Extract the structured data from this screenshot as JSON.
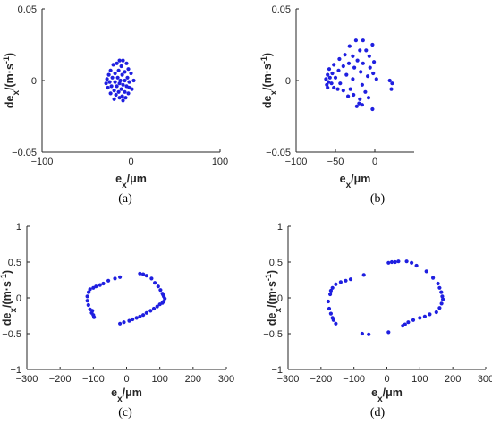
{
  "marker_color": "#1f1fe0",
  "axis_color": "#262626",
  "chart_data": [
    {
      "type": "scatter",
      "caption": "(a)",
      "xlabel": "e_x/μm",
      "ylabel": "de_x/(m·s^-1)",
      "xlim": [
        -100,
        100
      ],
      "ylim": [
        -0.05,
        0.05
      ],
      "xticks": [
        -100,
        0,
        100
      ],
      "yticks": [
        -0.05,
        0,
        0.05
      ],
      "ytick_labels": [
        "−0.05",
        "0",
        "0.05"
      ],
      "xtick_labels": [
        "−100",
        "0",
        "100"
      ],
      "grid": false,
      "points": [
        [
          -13,
          0.014
        ],
        [
          -9,
          0.014
        ],
        [
          -16,
          0.012
        ],
        [
          -5,
          0.012
        ],
        [
          -20,
          0.011
        ],
        [
          -11,
          0.01
        ],
        [
          -3,
          0.008
        ],
        [
          -23,
          0.007
        ],
        [
          -14,
          0.007
        ],
        [
          -7,
          0.006
        ],
        [
          -18,
          0.005
        ],
        [
          0,
          0.005
        ],
        [
          -25,
          0.004
        ],
        [
          -10,
          0.004
        ],
        [
          -21,
          0.002
        ],
        [
          -15,
          0.002
        ],
        [
          -4,
          0.002
        ],
        [
          -27,
          0.001
        ],
        [
          -12,
          0.0
        ],
        [
          -7,
          0.0
        ],
        [
          3,
          0.0
        ],
        [
          -24,
          -0.001
        ],
        [
          -18,
          -0.001
        ],
        [
          -2,
          -0.001
        ],
        [
          -13,
          -0.002
        ],
        [
          -28,
          -0.002
        ],
        [
          -9,
          -0.003
        ],
        [
          -22,
          -0.004
        ],
        [
          -16,
          -0.004
        ],
        [
          -5,
          -0.004
        ],
        [
          -26,
          -0.005
        ],
        [
          -11,
          -0.006
        ],
        [
          1,
          -0.006
        ],
        [
          -19,
          -0.007
        ],
        [
          -14,
          -0.008
        ],
        [
          -7,
          -0.008
        ],
        [
          -23,
          -0.009
        ],
        [
          -3,
          -0.009
        ],
        [
          -17,
          -0.01
        ],
        [
          -10,
          -0.011
        ],
        [
          -13,
          -0.012
        ],
        [
          -6,
          -0.012
        ],
        [
          -19,
          -0.013
        ],
        [
          -9,
          -0.014
        ],
        [
          -2,
          -0.005
        ]
      ]
    },
    {
      "type": "scatter",
      "caption": "(b)",
      "xlabel": "e_x/μm",
      "ylabel": "de_x/(m·s^-1)",
      "xlim": [
        -100,
        50
      ],
      "ylim": [
        -0.05,
        0.05
      ],
      "xticks": [
        -100,
        -50,
        0
      ],
      "yticks": [
        -0.05,
        0,
        0.05
      ],
      "ytick_labels": [
        "−0.05",
        "0",
        "0.05"
      ],
      "xtick_labels": [
        "−100",
        "−50",
        "0"
      ],
      "grid": false,
      "points": [
        [
          -24,
          0.028
        ],
        [
          -15,
          0.028
        ],
        [
          -32,
          0.024
        ],
        [
          -3,
          0.025
        ],
        [
          -19,
          0.021
        ],
        [
          -11,
          0.021
        ],
        [
          -38,
          0.018
        ],
        [
          -28,
          0.017
        ],
        [
          -7,
          0.017
        ],
        [
          -45,
          0.015
        ],
        [
          -22,
          0.014
        ],
        [
          -1,
          0.013
        ],
        [
          -33,
          0.012
        ],
        [
          -15,
          0.012
        ],
        [
          -52,
          0.011
        ],
        [
          -40,
          0.01
        ],
        [
          -26,
          0.009
        ],
        [
          -6,
          0.009
        ],
        [
          -58,
          0.008
        ],
        [
          -46,
          0.007
        ],
        [
          -18,
          0.006
        ],
        [
          -2,
          0.005
        ],
        [
          -54,
          0.005
        ],
        [
          -60,
          0.004
        ],
        [
          -36,
          0.004
        ],
        [
          -9,
          0.003
        ],
        [
          -57,
          0.002
        ],
        [
          -50,
          0.002
        ],
        [
          -62,
          0.001
        ],
        [
          -28,
          0.001
        ],
        [
          2,
          0.001
        ],
        [
          -59,
          -0.001
        ],
        [
          -55,
          -0.002
        ],
        [
          -44,
          -0.002
        ],
        [
          -61,
          -0.003
        ],
        [
          -16,
          -0.003
        ],
        [
          -52,
          -0.005
        ],
        [
          -60,
          -0.005
        ],
        [
          -47,
          -0.006
        ],
        [
          -40,
          -0.007
        ],
        [
          -31,
          -0.006
        ],
        [
          21,
          -0.006
        ],
        [
          -12,
          -0.008
        ],
        [
          -27,
          -0.01
        ],
        [
          -34,
          -0.011
        ],
        [
          -19,
          -0.013
        ],
        [
          -8,
          -0.012
        ],
        [
          -23,
          -0.018
        ],
        [
          -16,
          -0.017
        ],
        [
          -3,
          -0.02
        ],
        [
          -20,
          -0.016
        ],
        [
          19,
          0.0
        ],
        [
          22,
          -0.002
        ]
      ]
    },
    {
      "type": "scatter",
      "caption": "(c)",
      "xlabel": "e_x/μm",
      "ylabel": "de_x/(m·s^-1)",
      "xlim": [
        -300,
        300
      ],
      "ylim": [
        -1,
        1
      ],
      "xticks": [
        -300,
        -200,
        -100,
        0,
        100,
        200,
        300
      ],
      "yticks": [
        -1,
        -0.5,
        0,
        0.5,
        1
      ],
      "ytick_labels": [
        "−1",
        "−0.5",
        "0",
        "0.5",
        "1"
      ],
      "xtick_labels": [
        "−300",
        "−200",
        "−100",
        "0",
        "100",
        "200",
        "300"
      ],
      "grid": false,
      "points": [
        [
          -110,
          0.12
        ],
        [
          -100,
          0.14
        ],
        [
          -92,
          0.16
        ],
        [
          -80,
          0.18
        ],
        [
          -70,
          0.2
        ],
        [
          -55,
          0.24
        ],
        [
          -35,
          0.27
        ],
        [
          -20,
          0.29
        ],
        [
          40,
          0.34
        ],
        [
          50,
          0.33
        ],
        [
          60,
          0.31
        ],
        [
          75,
          0.27
        ],
        [
          85,
          0.21
        ],
        [
          95,
          0.16
        ],
        [
          102,
          0.11
        ],
        [
          108,
          0.06
        ],
        [
          112,
          0.02
        ],
        [
          110,
          0.04
        ],
        [
          115,
          -0.01
        ],
        [
          112,
          -0.05
        ],
        [
          108,
          -0.07
        ],
        [
          100,
          -0.09
        ],
        [
          92,
          -0.12
        ],
        [
          82,
          -0.15
        ],
        [
          72,
          -0.18
        ],
        [
          60,
          -0.21
        ],
        [
          50,
          -0.24
        ],
        [
          40,
          -0.26
        ],
        [
          30,
          -0.28
        ],
        [
          18,
          -0.3
        ],
        [
          8,
          -0.32
        ],
        [
          -8,
          -0.34
        ],
        [
          -20,
          -0.36
        ],
        [
          -98,
          -0.27
        ],
        [
          -105,
          -0.21
        ],
        [
          -110,
          -0.16
        ],
        [
          -115,
          -0.1
        ],
        [
          -118,
          -0.04
        ],
        [
          -118,
          0.02
        ],
        [
          -114,
          0.08
        ],
        [
          -100,
          -0.24
        ],
        [
          -103,
          -0.18
        ]
      ]
    },
    {
      "type": "scatter",
      "caption": "(d)",
      "xlabel": "e_x/μm",
      "ylabel": "de_x/(m·s^-1)",
      "xlim": [
        -300,
        300
      ],
      "ylim": [
        -1,
        1
      ],
      "xticks": [
        -300,
        -200,
        -100,
        0,
        100,
        200,
        300
      ],
      "yticks": [
        -1,
        -0.5,
        0,
        0.5,
        1
      ],
      "ytick_labels": [
        "−1",
        "−0.5",
        "0",
        "0.5",
        "1"
      ],
      "xtick_labels": [
        "−300",
        "−200",
        "−100",
        "0",
        "100",
        "200",
        "300"
      ],
      "grid": false,
      "points": [
        [
          -170,
          0.1
        ],
        [
          -165,
          0.14
        ],
        [
          -155,
          0.19
        ],
        [
          -140,
          0.22
        ],
        [
          -125,
          0.24
        ],
        [
          -110,
          0.26
        ],
        [
          -70,
          0.32
        ],
        [
          5,
          0.49
        ],
        [
          15,
          0.5
        ],
        [
          25,
          0.5
        ],
        [
          35,
          0.51
        ],
        [
          60,
          0.51
        ],
        [
          75,
          0.49
        ],
        [
          90,
          0.45
        ],
        [
          120,
          0.37
        ],
        [
          140,
          0.28
        ],
        [
          155,
          0.2
        ],
        [
          160,
          0.14
        ],
        [
          165,
          0.08
        ],
        [
          168,
          0.02
        ],
        [
          170,
          -0.02
        ],
        [
          166,
          -0.08
        ],
        [
          160,
          -0.14
        ],
        [
          150,
          -0.2
        ],
        [
          130,
          -0.23
        ],
        [
          115,
          -0.26
        ],
        [
          100,
          -0.28
        ],
        [
          80,
          -0.31
        ],
        [
          65,
          -0.34
        ],
        [
          55,
          -0.37
        ],
        [
          48,
          -0.39
        ],
        [
          5,
          -0.48
        ],
        [
          -55,
          -0.51
        ],
        [
          -75,
          -0.5
        ],
        [
          -155,
          -0.36
        ],
        [
          -165,
          -0.28
        ],
        [
          -170,
          -0.22
        ],
        [
          -175,
          -0.15
        ],
        [
          -178,
          -0.05
        ],
        [
          -172,
          0.05
        ],
        [
          -162,
          -0.31
        ]
      ]
    }
  ]
}
